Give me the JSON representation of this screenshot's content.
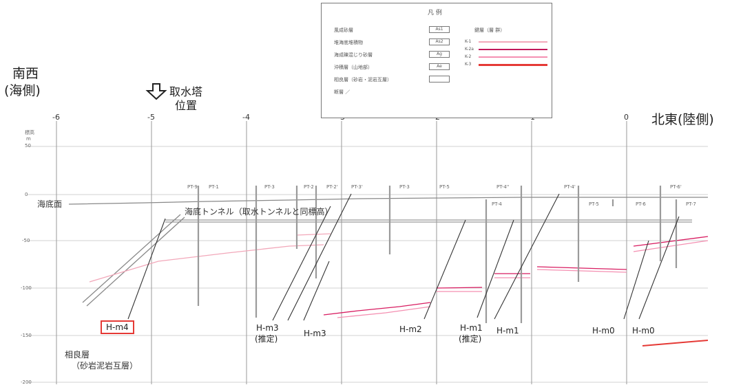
{
  "side_labels": {
    "southwest": "南西",
    "southwest_sub": "(海側)",
    "northeast": "北東(陸側)",
    "intake_tower": "取水塔",
    "intake_tower_sub": "位置"
  },
  "x_ticks": [
    "-6",
    "-5",
    "-4",
    "-3",
    "-2",
    "-1",
    "0"
  ],
  "y_axis": {
    "title": "標高",
    "unit": "m",
    "ticks": [
      "50",
      "0",
      "-50",
      "-100",
      "-150",
      "-200"
    ]
  },
  "annotations": {
    "seafloor": "海底面",
    "tunnel": "海底トンネル（取水トンネルと同標高）",
    "bedrock": "相良層",
    "bedrock_sub": "（砂岩泥岩互層）"
  },
  "faults": [
    {
      "name": "H-m4",
      "note": "",
      "highlighted": true
    },
    {
      "name": "H-m3",
      "note": "(推定)",
      "highlighted": false
    },
    {
      "name": "H-m3",
      "note": "",
      "highlighted": false
    },
    {
      "name": "H-m2",
      "note": "",
      "highlighted": false
    },
    {
      "name": "H-m1",
      "note": "(推定)",
      "highlighted": false
    },
    {
      "name": "H-m1",
      "note": "",
      "highlighted": false
    },
    {
      "name": "H-m0",
      "note": "",
      "highlighted": false
    },
    {
      "name": "H-m0",
      "note": "",
      "highlighted": false
    }
  ],
  "boreholes_top": [
    "PT-9",
    "PT-1",
    "PT-3",
    "PT-2",
    "PT-2'",
    "PT-3'",
    "PT-3",
    "PT-5",
    "PT-4''",
    "PT-4'",
    "PT-6'"
  ],
  "boreholes_lower": [
    "PT-4",
    "PT-5",
    "PT-6",
    "PT-7"
  ],
  "legend": {
    "title": "凡 例",
    "strata": [
      {
        "label": "風成砂層",
        "code": "As1"
      },
      {
        "label": "堆海底堆積物",
        "code": "As2"
      },
      {
        "label": "海成礫混じり砂層",
        "code": "Ag"
      },
      {
        "label": "沖積層（山地部）",
        "code": "Ae"
      },
      {
        "label": "相良層（砂岩・泥岩互層）",
        "code": ""
      },
      {
        "label": "断層 ／",
        "code": null
      }
    ],
    "key_beds_title": "鍵層（層 群）",
    "key_beds": [
      {
        "label": "K-1",
        "color": "#f2a7b9"
      },
      {
        "label": "K-2a",
        "color": "#c2185b"
      },
      {
        "label": "K-2",
        "color": "#f48fb1"
      },
      {
        "label": "K-3",
        "color": "#e53935"
      }
    ]
  },
  "colors": {
    "highlight_box": "#e53935",
    "key_bed_light": "#f2a7b9",
    "key_bed_dark": "#d81b60",
    "key_bed_red": "#e53935",
    "grid": "#cfcfcf",
    "line": "#333333"
  }
}
